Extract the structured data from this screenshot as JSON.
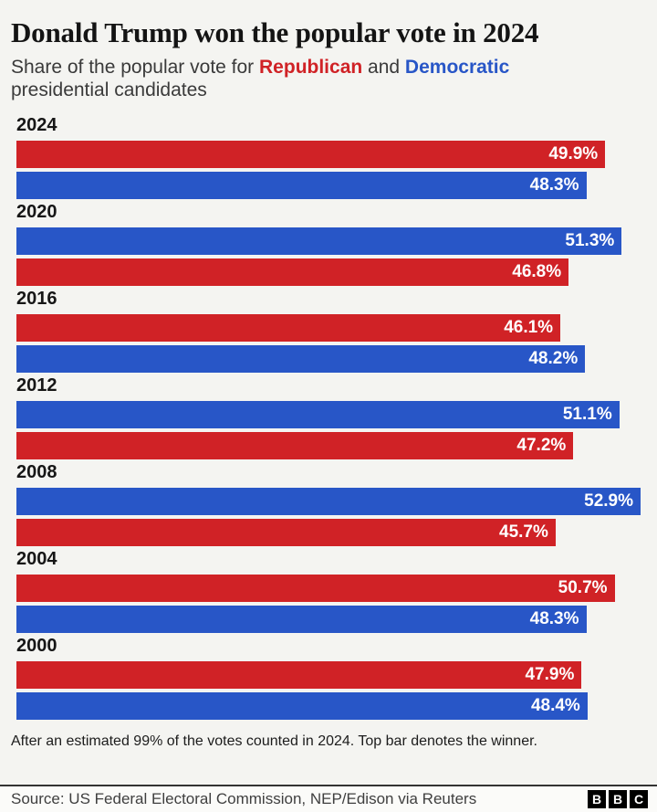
{
  "page": {
    "background": "#f4f4f1"
  },
  "header": {
    "title": "Donald Trump won the popular vote in 2024",
    "subtitle_prefix": "Share of the popular vote for ",
    "republican_label": "Republican",
    "conjunction": " and ",
    "democratic_label": "Democratic",
    "subtitle_suffix": " presidential candidates"
  },
  "chart_data": {
    "type": "bar",
    "orientation": "horizontal",
    "unit": "%",
    "value_axis_max": 52.9,
    "grid": false,
    "legend_note": "Top bar denotes the winner",
    "colors": {
      "republican": "#d02226",
      "democratic": "#2856c7"
    },
    "groups": [
      {
        "year": "2024",
        "winner": "republican",
        "bars": [
          {
            "party": "republican",
            "value": 49.9,
            "label": "49.9%"
          },
          {
            "party": "democratic",
            "value": 48.3,
            "label": "48.3%"
          }
        ]
      },
      {
        "year": "2020",
        "winner": "democratic",
        "bars": [
          {
            "party": "democratic",
            "value": 51.3,
            "label": "51.3%"
          },
          {
            "party": "republican",
            "value": 46.8,
            "label": "46.8%"
          }
        ]
      },
      {
        "year": "2016",
        "winner": "republican",
        "bars": [
          {
            "party": "republican",
            "value": 46.1,
            "label": "46.1%"
          },
          {
            "party": "democratic",
            "value": 48.2,
            "label": "48.2%"
          }
        ]
      },
      {
        "year": "2012",
        "winner": "democratic",
        "bars": [
          {
            "party": "democratic",
            "value": 51.1,
            "label": "51.1%"
          },
          {
            "party": "republican",
            "value": 47.2,
            "label": "47.2%"
          }
        ]
      },
      {
        "year": "2008",
        "winner": "democratic",
        "bars": [
          {
            "party": "democratic",
            "value": 52.9,
            "label": "52.9%"
          },
          {
            "party": "republican",
            "value": 45.7,
            "label": "45.7%"
          }
        ]
      },
      {
        "year": "2004",
        "winner": "republican",
        "bars": [
          {
            "party": "republican",
            "value": 50.7,
            "label": "50.7%"
          },
          {
            "party": "democratic",
            "value": 48.3,
            "label": "48.3%"
          }
        ]
      },
      {
        "year": "2000",
        "winner": "republican",
        "bars": [
          {
            "party": "republican",
            "value": 47.9,
            "label": "47.9%"
          },
          {
            "party": "democratic",
            "value": 48.4,
            "label": "48.4%"
          }
        ]
      }
    ]
  },
  "footer": {
    "note": "After an estimated 99% of the votes counted in 2024. Top bar denotes the winner.",
    "source": "Source: US Federal Electoral Commission, NEP/Edison via Reuters",
    "logo_letters": [
      "B",
      "B",
      "C"
    ]
  }
}
